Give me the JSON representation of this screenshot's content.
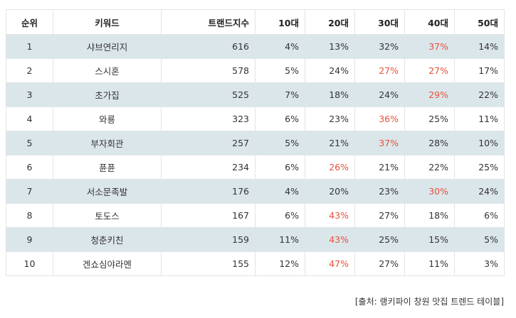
{
  "columns": {
    "rank": "순위",
    "keyword": "키워드",
    "score": "트랜드지수",
    "age10": "10대",
    "age20": "20대",
    "age30": "30대",
    "age40": "40대",
    "age50": "50대"
  },
  "rows": [
    {
      "rank": "1",
      "keyword": "샤브연리지",
      "score": "616",
      "age10": "4%",
      "age20": "13%",
      "age30": "32%",
      "age40": "37%",
      "age50": "14%",
      "highlight": "age40"
    },
    {
      "rank": "2",
      "keyword": "스시혼",
      "score": "578",
      "age10": "5%",
      "age20": "24%",
      "age30": "27%",
      "age40": "27%",
      "age50": "17%",
      "highlight": [
        "age30",
        "age40"
      ]
    },
    {
      "rank": "3",
      "keyword": "초가집",
      "score": "525",
      "age10": "7%",
      "age20": "18%",
      "age30": "24%",
      "age40": "29%",
      "age50": "22%",
      "highlight": "age40"
    },
    {
      "rank": "4",
      "keyword": "와룡",
      "score": "323",
      "age10": "6%",
      "age20": "23%",
      "age30": "36%",
      "age40": "25%",
      "age50": "11%",
      "highlight": "age30"
    },
    {
      "rank": "5",
      "keyword": "부자회관",
      "score": "257",
      "age10": "5%",
      "age20": "21%",
      "age30": "37%",
      "age40": "28%",
      "age50": "10%",
      "highlight": "age30"
    },
    {
      "rank": "6",
      "keyword": "퓬퓬",
      "score": "234",
      "age10": "6%",
      "age20": "26%",
      "age30": "21%",
      "age40": "22%",
      "age50": "25%",
      "highlight": "age20"
    },
    {
      "rank": "7",
      "keyword": "서소문족발",
      "score": "176",
      "age10": "4%",
      "age20": "20%",
      "age30": "23%",
      "age40": "30%",
      "age50": "24%",
      "highlight": "age40"
    },
    {
      "rank": "8",
      "keyword": "토도스",
      "score": "167",
      "age10": "6%",
      "age20": "43%",
      "age30": "27%",
      "age40": "18%",
      "age50": "6%",
      "highlight": "age20"
    },
    {
      "rank": "9",
      "keyword": "청춘키친",
      "score": "159",
      "age10": "11%",
      "age20": "43%",
      "age30": "25%",
      "age40": "15%",
      "age50": "5%",
      "highlight": "age20"
    },
    {
      "rank": "10",
      "keyword": "겐쇼심야라멘",
      "score": "155",
      "age10": "12%",
      "age20": "47%",
      "age30": "27%",
      "age40": "11%",
      "age50": "3%",
      "highlight": "age20"
    }
  ],
  "highlight_color": "#e8503a",
  "source": "[출처: 랭키파이 창원 맛집 트렌드 테이블]"
}
